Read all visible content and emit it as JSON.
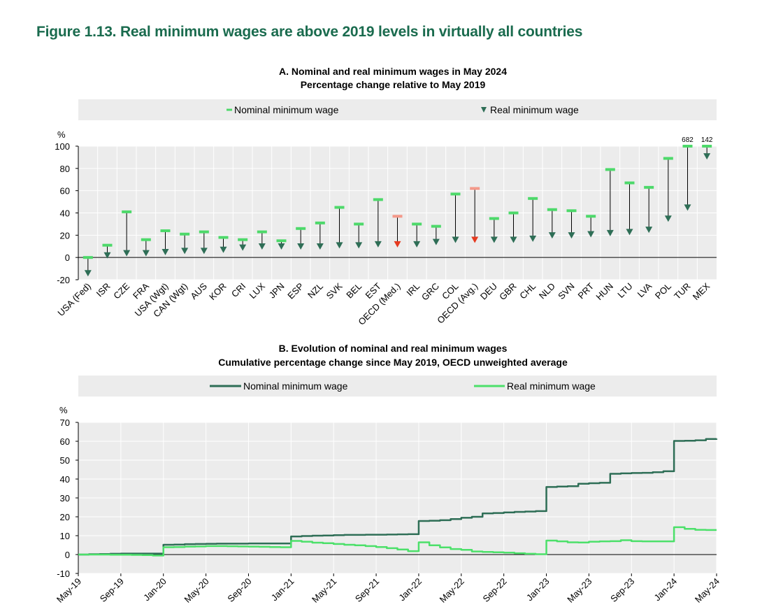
{
  "figure_title": "Figure 1.13. Real minimum wages are above 2019 levels in virtually all countries",
  "colors": {
    "title": "#1a6b4e",
    "nominal_a": "#4dd96a",
    "real_a": "#2e6e56",
    "oecd_nominal": "#f4998a",
    "oecd_real": "#e63a1f",
    "nominal_b": "#2e6e56",
    "real_b": "#4ce06a",
    "legend_bg": "#ececec",
    "grid": "#ffffff"
  },
  "chart_data": [
    {
      "type": "dumbbell",
      "title": "A. Nominal and real minimum wages in May 2024",
      "subtitle": "Percentage change relative to May 2019",
      "ylabel": "%",
      "ylim": [
        -20,
        100
      ],
      "yticks": [
        "-20",
        "0",
        "20",
        "40",
        "60",
        "80",
        "100"
      ],
      "legend": {
        "nominal": "Nominal minimum wage",
        "real": "Real minimum wage"
      },
      "categories": [
        "USA (Fed)",
        "ISR",
        "CZE",
        "FRA",
        "USA (Wgt)",
        "CAN (Wgt)",
        "AUS",
        "KOR",
        "CRI",
        "LUX",
        "JPN",
        "ESP",
        "NZL",
        "SVK",
        "BEL",
        "EST",
        "OECD (Med.)",
        "IRL",
        "GRC",
        "COL",
        "OECD (Avg.)",
        "DEU",
        "GBR",
        "CHL",
        "NLD",
        "SVN",
        "PRT",
        "HUN",
        "LTU",
        "LVA",
        "POL",
        "TUR",
        "MEX"
      ],
      "highlight": [
        "OECD (Med.)",
        "OECD (Avg.)"
      ],
      "nominal": [
        0,
        11,
        41,
        16,
        24,
        21,
        23,
        18,
        16,
        23,
        15,
        26,
        31,
        45,
        30,
        52,
        37,
        30,
        28,
        57,
        62,
        35,
        40,
        53,
        43,
        42,
        37,
        79,
        67,
        63,
        89,
        682,
        142
      ],
      "real": [
        -17,
        -1,
        1,
        1,
        2,
        3,
        3,
        4,
        6,
        7,
        7,
        7,
        7,
        8,
        8,
        9,
        9,
        9,
        11,
        13,
        13,
        13,
        13,
        14,
        17,
        17,
        18,
        19,
        20,
        22,
        32,
        42,
        88
      ],
      "value_labels": [
        {
          "category": "TUR",
          "text": "682"
        },
        {
          "category": "MEX",
          "text": "142"
        }
      ]
    },
    {
      "type": "line",
      "title": "B. Evolution of nominal and real minimum wages",
      "subtitle": "Cumulative percentage change since May 2019, OECD unweighted average",
      "ylabel": "%",
      "ylim": [
        -10,
        70
      ],
      "yticks": [
        "-10",
        "0",
        "10",
        "20",
        "30",
        "40",
        "50",
        "60",
        "70"
      ],
      "x_range": [
        "May-19",
        "May-24"
      ],
      "x": [
        "May-19",
        "Jun-19",
        "Jul-19",
        "Aug-19",
        "Sep-19",
        "Oct-19",
        "Nov-19",
        "Dec-19",
        "Jan-20",
        "Feb-20",
        "Mar-20",
        "Apr-20",
        "May-20",
        "Jun-20",
        "Jul-20",
        "Aug-20",
        "Sep-20",
        "Oct-20",
        "Nov-20",
        "Dec-20",
        "Jan-21",
        "Feb-21",
        "Mar-21",
        "Apr-21",
        "May-21",
        "Jun-21",
        "Jul-21",
        "Aug-21",
        "Sep-21",
        "Oct-21",
        "Nov-21",
        "Dec-21",
        "Jan-22",
        "Feb-22",
        "Mar-22",
        "Apr-22",
        "May-22",
        "Jun-22",
        "Jul-22",
        "Aug-22",
        "Sep-22",
        "Oct-22",
        "Nov-22",
        "Dec-22",
        "Jan-23",
        "Feb-23",
        "Mar-23",
        "Apr-23",
        "May-23",
        "Jun-23",
        "Jul-23",
        "Aug-23",
        "Sep-23",
        "Oct-23",
        "Nov-23",
        "Dec-23",
        "Jan-24",
        "Feb-24",
        "Mar-24",
        "Apr-24",
        "May-24"
      ],
      "xticks": [
        "May-19",
        "Sep-19",
        "Jan-20",
        "May-20",
        "Sep-20",
        "Jan-21",
        "May-21",
        "Sep-21",
        "Jan-22",
        "May-22",
        "Sep-22",
        "Jan-23",
        "May-23",
        "Sep-23",
        "Jan-24",
        "May-24"
      ],
      "series": [
        {
          "name": "Nominal minimum wage",
          "values": [
            0,
            0.2,
            0.3,
            0.4,
            0.5,
            0.5,
            0.5,
            0.5,
            5.2,
            5.3,
            5.5,
            5.6,
            5.7,
            5.8,
            5.8,
            5.8,
            5.9,
            5.9,
            5.9,
            5.9,
            9.6,
            9.8,
            10,
            10.1,
            10.3,
            10.4,
            10.4,
            10.5,
            10.5,
            10.6,
            10.7,
            10.8,
            17.8,
            17.9,
            18.2,
            18.8,
            19.5,
            20,
            21.8,
            22,
            22.3,
            22.6,
            22.8,
            23,
            35.8,
            36,
            36.2,
            37.5,
            37.8,
            38,
            42.8,
            43,
            43.2,
            43.3,
            43.6,
            44.1,
            60.2,
            60.3,
            60.5,
            61.2,
            61.4
          ]
        },
        {
          "name": "Real minimum wage",
          "values": [
            0,
            0,
            0,
            -0.1,
            -0.1,
            -0.2,
            -0.3,
            -0.5,
            3.9,
            4,
            4.2,
            4.3,
            4.5,
            4.5,
            4.4,
            4.3,
            4.2,
            4.1,
            4,
            3.9,
            7.2,
            6.8,
            6.3,
            6,
            5.6,
            5.2,
            4.9,
            4.5,
            4,
            3.4,
            2.7,
            1.8,
            6.5,
            4.9,
            3.8,
            2.9,
            2.5,
            1.6,
            1.4,
            1.2,
            1,
            0.7,
            0.4,
            0.2,
            7.4,
            7,
            6.5,
            6.4,
            6.8,
            7,
            7.1,
            7.6,
            7.1,
            7,
            7,
            7,
            14.5,
            13.6,
            13.1,
            13,
            13
          ]
        }
      ]
    }
  ]
}
